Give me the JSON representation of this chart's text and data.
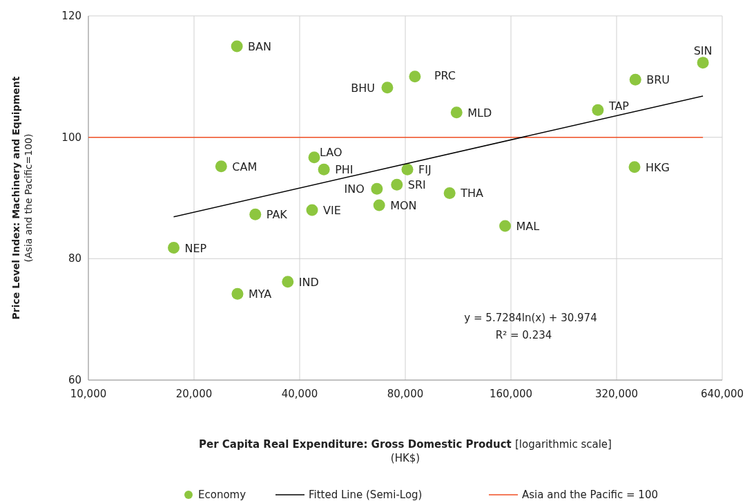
{
  "chart_data": {
    "type": "scatter",
    "xlabel": "Per Capita Real Expenditure: Gross Domestic Product [logarithmic scale] (HK$)",
    "ylabel": "Price Level Index: Machinery and Equipment (Asia and the Pacific=100)",
    "log": "x",
    "xlim": [
      10000,
      640000
    ],
    "xticks": [
      {
        "value": 10000,
        "label": "10,000"
      },
      {
        "value": 20000,
        "label": "20,000"
      },
      {
        "value": 40000,
        "label": "40,000"
      },
      {
        "value": 80000,
        "label": "80,000"
      },
      {
        "value": 160000,
        "label": "160,000"
      },
      {
        "value": 320000,
        "label": "320,000"
      },
      {
        "value": 640000,
        "label": "640,000"
      }
    ],
    "ylim": [
      60,
      120
    ],
    "yticks": [
      60,
      80,
      100,
      120
    ],
    "grid": true,
    "legend": "bottom",
    "marker": "circle",
    "series": [
      {
        "name": "Economy",
        "type": "scatter",
        "color": "#8dc63f",
        "x": [
          26500,
          85200,
          71100,
          112000,
          564000,
          362000,
          283000,
          23900,
          44000,
          46900,
          81100,
          360000,
          66400,
          75700,
          107000,
          29900,
          43400,
          67400,
          154000,
          17500,
          37000,
          26600
        ],
        "values": [
          115.0,
          110.0,
          108.2,
          104.1,
          112.3,
          109.5,
          104.5,
          95.2,
          96.7,
          94.7,
          94.7,
          95.1,
          91.5,
          92.2,
          90.8,
          87.3,
          88.0,
          88.8,
          85.4,
          81.8,
          76.2,
          74.2
        ]
      },
      {
        "name": "Fitted Line (Semi-Log)",
        "type": "line",
        "marker": "none",
        "color": "#000000",
        "x": [
          17500,
          564000
        ],
        "values": [
          86.9,
          106.8
        ]
      }
    ],
    "ref_lines": [
      {
        "axis": "y",
        "value": 100,
        "label": "Asia and the Pacific = 100",
        "color": "#f04e23"
      }
    ],
    "annotations": [
      {
        "text": "BAN",
        "x": 26500,
        "y": 115.0
      },
      {
        "text": "PRC",
        "x": 85200,
        "y": 110.0
      },
      {
        "text": "BHU",
        "x": 71100,
        "y": 108.2
      },
      {
        "text": "MLD",
        "x": 112000,
        "y": 104.1
      },
      {
        "text": "SIN",
        "x": 564000,
        "y": 112.3
      },
      {
        "text": "BRU",
        "x": 362000,
        "y": 109.5
      },
      {
        "text": "TAP",
        "x": 283000,
        "y": 104.5
      },
      {
        "text": "CAM",
        "x": 23900,
        "y": 95.2
      },
      {
        "text": "LAO",
        "x": 44000,
        "y": 96.7
      },
      {
        "text": "PHI",
        "x": 46900,
        "y": 94.7
      },
      {
        "text": "FIJ",
        "x": 81100,
        "y": 94.7
      },
      {
        "text": "HKG",
        "x": 360000,
        "y": 95.1
      },
      {
        "text": "INO",
        "x": 66400,
        "y": 91.5
      },
      {
        "text": "SRI",
        "x": 75700,
        "y": 92.2
      },
      {
        "text": "THA",
        "x": 107000,
        "y": 90.8
      },
      {
        "text": "PAK",
        "x": 29900,
        "y": 87.3
      },
      {
        "text": "VIE",
        "x": 43400,
        "y": 88.0
      },
      {
        "text": "MON",
        "x": 67400,
        "y": 88.8
      },
      {
        "text": "MAL",
        "x": 154000,
        "y": 85.4
      },
      {
        "text": "NEP",
        "x": 17500,
        "y": 81.8
      },
      {
        "text": "IND",
        "x": 37000,
        "y": 76.2
      },
      {
        "text": "MYA",
        "x": 26600,
        "y": 74.2
      },
      "y = 5.7284ln(x) + 30.974",
      "R² = 0.234"
    ]
  }
}
